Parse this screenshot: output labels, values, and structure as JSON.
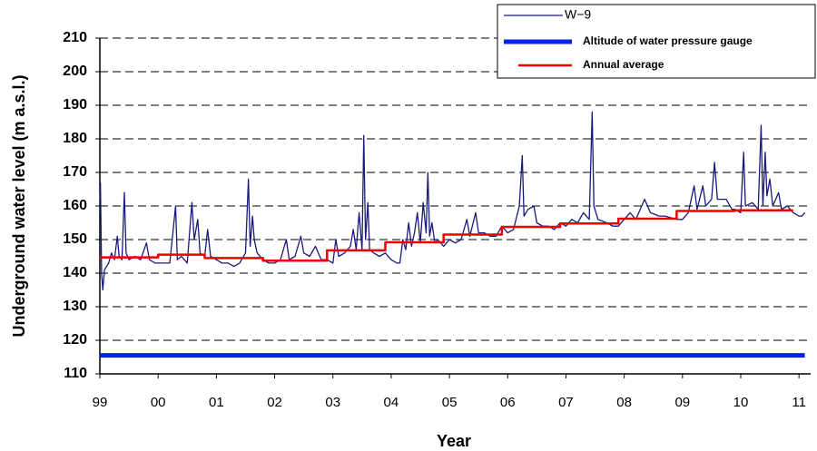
{
  "chart_data": {
    "type": "line",
    "xlabel": "Year",
    "ylabel": "Underground water level (m a.s.l.)",
    "xlim": [
      1999,
      2011.2
    ],
    "ylim": [
      110,
      210
    ],
    "yticks": [
      110,
      120,
      130,
      140,
      150,
      160,
      170,
      180,
      190,
      200,
      210
    ],
    "xticks": [
      {
        "value": 1999,
        "label": "99"
      },
      {
        "value": 2000,
        "label": "00"
      },
      {
        "value": 2001,
        "label": "01"
      },
      {
        "value": 2002,
        "label": "02"
      },
      {
        "value": 2003,
        "label": "03"
      },
      {
        "value": 2004,
        "label": "04"
      },
      {
        "value": 2005,
        "label": "05"
      },
      {
        "value": 2006,
        "label": "06"
      },
      {
        "value": 2007,
        "label": "07"
      },
      {
        "value": 2008,
        "label": "08"
      },
      {
        "value": 2009,
        "label": "09"
      },
      {
        "value": 2010,
        "label": "10"
      },
      {
        "value": 2011,
        "label": "11"
      }
    ],
    "grid": true,
    "legend": "upper right",
    "series": [
      {
        "name": "W−9",
        "color": "#1a1a7a",
        "x": [
          1999,
          1999.01,
          1999.03,
          1999.05,
          1999.08,
          1999.15,
          1999.2,
          1999.25,
          1999.3,
          1999.33,
          1999.38,
          1999.42,
          1999.45,
          1999.5,
          1999.6,
          1999.7,
          1999.8,
          1999.85,
          1999.95,
          2000,
          2000.1,
          2000.2,
          2000.3,
          2000.33,
          2000.4,
          2000.5,
          2000.58,
          2000.62,
          2000.68,
          2000.72,
          2000.8,
          2000.85,
          2000.9,
          2001,
          2001.1,
          2001.2,
          2001.3,
          2001.4,
          2001.5,
          2001.55,
          2001.58,
          2001.62,
          2001.65,
          2001.7,
          2001.8,
          2001.9,
          2002,
          2002.1,
          2002.2,
          2002.25,
          2002.35,
          2002.45,
          2002.5,
          2002.6,
          2002.7,
          2002.8,
          2002.9,
          2003,
          2003.05,
          2003.1,
          2003.2,
          2003.3,
          2003.35,
          2003.4,
          2003.45,
          2003.5,
          2003.53,
          2003.56,
          2003.6,
          2003.63,
          2003.7,
          2003.8,
          2003.9,
          2004,
          2004.1,
          2004.15,
          2004.2,
          2004.25,
          2004.3,
          2004.35,
          2004.4,
          2004.45,
          2004.5,
          2004.55,
          2004.6,
          2004.63,
          2004.66,
          2004.7,
          2004.75,
          2004.8,
          2004.9,
          2005,
          2005.1,
          2005.2,
          2005.3,
          2005.35,
          2005.45,
          2005.5,
          2005.6,
          2005.7,
          2005.8,
          2005.9,
          2006,
          2006.1,
          2006.2,
          2006.25,
          2006.28,
          2006.35,
          2006.45,
          2006.5,
          2006.6,
          2006.7,
          2006.8,
          2006.9,
          2007,
          2007.1,
          2007.2,
          2007.3,
          2007.4,
          2007.45,
          2007.48,
          2007.55,
          2007.7,
          2007.8,
          2007.9,
          2008,
          2008.1,
          2008.2,
          2008.3,
          2008.35,
          2008.45,
          2008.6,
          2008.7,
          2008.9,
          2009,
          2009.1,
          2009.2,
          2009.25,
          2009.35,
          2009.4,
          2009.5,
          2009.55,
          2009.6,
          2009.75,
          2009.85,
          2009.9,
          2010,
          2010.05,
          2010.08,
          2010.2,
          2010.3,
          2010.35,
          2010.38,
          2010.42,
          2010.45,
          2010.5,
          2010.55,
          2010.65,
          2010.7,
          2010.8,
          2010.9,
          2011,
          2011.05,
          2011.1
        ],
        "values": [
          160,
          167,
          140,
          135,
          141,
          143,
          146,
          144,
          151,
          145,
          144,
          164,
          146,
          144,
          145,
          144,
          149,
          144,
          143,
          143,
          143,
          143,
          160,
          144,
          145,
          143,
          161,
          150,
          156,
          146,
          145,
          153,
          145,
          144,
          143,
          143,
          142,
          143,
          146,
          168,
          148,
          157,
          150,
          146,
          144,
          143,
          143,
          144,
          150,
          144,
          145,
          151,
          146,
          145,
          148,
          144,
          144,
          143,
          150,
          145,
          146,
          148,
          153,
          147,
          158,
          147,
          181,
          150,
          161,
          147,
          146,
          145,
          146,
          144,
          143,
          143,
          150,
          147,
          155,
          148,
          152,
          158,
          149,
          161,
          152,
          170,
          151,
          155,
          149,
          150,
          148,
          150,
          149,
          150,
          156,
          151,
          158,
          152,
          152,
          151,
          151,
          154,
          152,
          153,
          160,
          175,
          157,
          159,
          160,
          155,
          154,
          154,
          153,
          155,
          154,
          156,
          155,
          158,
          156,
          188,
          160,
          156,
          155,
          154,
          154,
          156,
          158,
          156,
          160,
          162,
          158,
          157,
          157,
          156,
          156,
          158,
          166,
          159,
          166,
          160,
          162,
          173,
          162,
          162,
          159,
          159,
          158,
          176,
          160,
          161,
          159,
          184,
          160,
          176,
          163,
          168,
          160,
          164,
          159,
          160,
          158,
          157,
          157,
          158
        ]
      },
      {
        "name": "Altitude of water pressure gauge",
        "color": "#0022ee",
        "x": [
          1999,
          2011.1
        ],
        "values": [
          115.5,
          115.5
        ]
      },
      {
        "name": "Annual average",
        "color": "#ee0000",
        "x": [
          1999,
          2000,
          2000,
          2000.8,
          2000.8,
          2001.8,
          2001.8,
          2002.9,
          2002.9,
          2003.9,
          2003.9,
          2004.9,
          2004.9,
          2005.9,
          2005.9,
          2006.9,
          2006.9,
          2007.9,
          2007.9,
          2008.9,
          2008.9,
          2009.9,
          2009.9,
          2010.9
        ],
        "values": [
          144.7,
          144.7,
          145.5,
          145.5,
          144.5,
          144.5,
          143.7,
          143.7,
          146.8,
          146.8,
          149.2,
          149.2,
          151.5,
          151.5,
          153.8,
          153.8,
          154.8,
          154.8,
          156.2,
          156.2,
          158.5,
          158.5,
          158.7,
          158.7
        ]
      }
    ]
  }
}
